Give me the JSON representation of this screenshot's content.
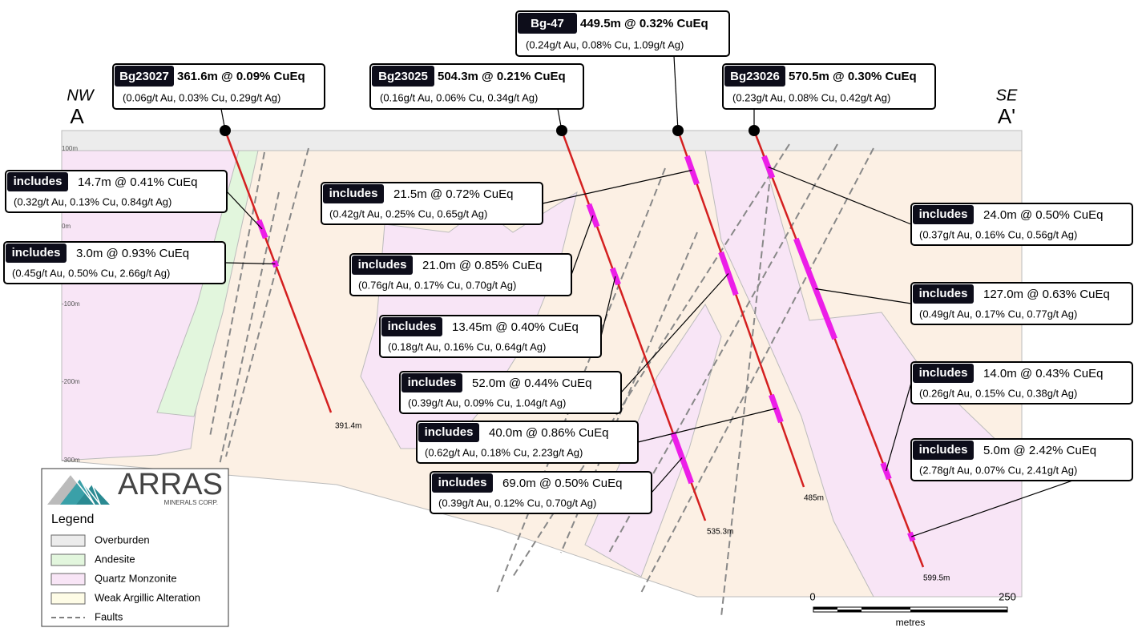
{
  "section": {
    "start": {
      "direction": "NW",
      "label": "A"
    },
    "end": {
      "direction": "SE",
      "label": "A'"
    }
  },
  "elevations": [
    "100m",
    "0m",
    "-100m",
    "-200m",
    "-300m"
  ],
  "holes": [
    {
      "id": "Bg23027",
      "summary": "361.6m @ 0.09% CuEq",
      "detail": "(0.06g/t Au, 0.03% Cu, 0.29g/t Ag)",
      "depth": "391.4m"
    },
    {
      "id": "Bg23025",
      "summary": "504.3m @ 0.21% CuEq",
      "detail": "(0.16g/t Au, 0.06% Cu, 0.34g/t Ag)",
      "depth": "535.3m"
    },
    {
      "id": "Bg-47",
      "summary": "449.5m @ 0.32% CuEq",
      "detail": "(0.24g/t Au, 0.08% Cu, 1.09g/t Ag)",
      "depth": "485m"
    },
    {
      "id": "Bg23026",
      "summary": "570.5m @ 0.30% CuEq",
      "detail": "(0.23g/t Au, 0.08% Cu, 0.42g/t Ag)",
      "depth": "599.5m"
    }
  ],
  "intercepts": [
    {
      "tag": "includes",
      "summary": "14.7m @ 0.41% CuEq",
      "detail": "(0.32g/t Au, 0.13% Cu, 0.84g/t Ag)"
    },
    {
      "tag": "includes",
      "summary": "3.0m @ 0.93% CuEq",
      "detail": "(0.45g/t Au, 0.50% Cu, 2.66g/t Ag)"
    },
    {
      "tag": "includes",
      "summary": "21.5m @ 0.72% CuEq",
      "detail": "(0.42g/t Au, 0.25% Cu, 0.65g/t Ag)"
    },
    {
      "tag": "includes",
      "summary": "21.0m @ 0.85% CuEq",
      "detail": "(0.76g/t Au, 0.17% Cu, 0.70g/t Ag)"
    },
    {
      "tag": "includes",
      "summary": "13.45m @ 0.40% CuEq",
      "detail": "(0.18g/t Au, 0.16% Cu, 0.64g/t Ag)"
    },
    {
      "tag": "includes",
      "summary": "52.0m @ 0.44% CuEq",
      "detail": "(0.39g/t Au, 0.09% Cu, 1.04g/t Ag)"
    },
    {
      "tag": "includes",
      "summary": "40.0m @ 0.86% CuEq",
      "detail": "(0.62g/t Au, 0.18% Cu, 2.23g/t Ag)"
    },
    {
      "tag": "includes",
      "summary": "69.0m @ 0.50% CuEq",
      "detail": "(0.39g/t Au, 0.12% Cu, 0.70g/t Ag)"
    },
    {
      "tag": "includes",
      "summary": "24.0m @ 0.50% CuEq",
      "detail": "(0.37g/t Au, 0.16% Cu, 0.56g/t Ag)"
    },
    {
      "tag": "includes",
      "summary": "127.0m @ 0.63% CuEq",
      "detail": "(0.49g/t Au, 0.17% Cu, 0.77g/t Ag)"
    },
    {
      "tag": "includes",
      "summary": "14.0m @ 0.43% CuEq",
      "detail": "(0.26g/t Au, 0.15% Cu, 0.38g/t Ag)"
    },
    {
      "tag": "includes",
      "summary": "5.0m @ 2.42% CuEq",
      "detail": "(2.78g/t Au, 0.07% Cu, 2.41g/t Ag)"
    }
  ],
  "logo": {
    "name": "ARRAS",
    "subtitle": "MINERALS CORP."
  },
  "legend": {
    "title": "Legend",
    "items": [
      "Overburden",
      "Andesite",
      "Quartz Monzonite",
      "Weak Argillic Alteration",
      "Faults"
    ]
  },
  "scale": {
    "start": "0",
    "end": "250",
    "unit": "metres"
  }
}
